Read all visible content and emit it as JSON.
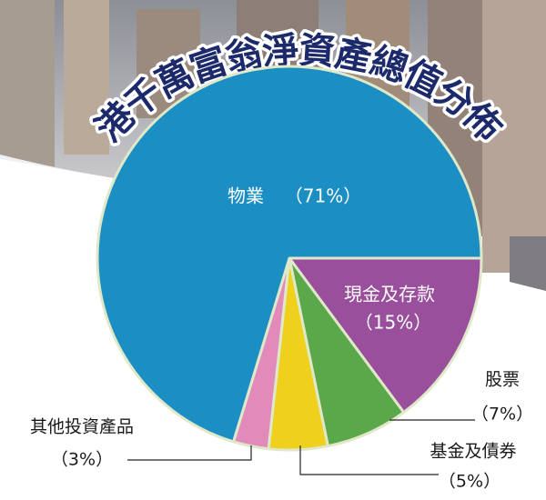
{
  "chart_data": {
    "type": "pie",
    "title": "港千萬富翁淨資產總值分佈",
    "categories": [
      "現金及存款",
      "股票",
      "基金及債券",
      "其他投資產品",
      "物業"
    ],
    "values": [
      15,
      7,
      5,
      3,
      71
    ],
    "value_labels": [
      "（15%）",
      "（7%）",
      "（5%）",
      "（3%）",
      "（71%）"
    ],
    "colors": [
      "#9a4f9c",
      "#5aa84a",
      "#efd01c",
      "#e28bbb",
      "#1b8ec3"
    ]
  }
}
